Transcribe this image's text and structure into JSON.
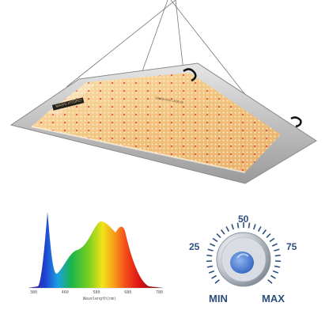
{
  "product": {
    "brand_mark": "MARS HYDRO",
    "led_count_label": "SAMSUNG LM301B"
  },
  "spectrum": {
    "ticks": [
      "380",
      "460",
      "580",
      "680",
      "780"
    ],
    "xlabel": "Wavelength(nm)"
  },
  "dial": {
    "marks": [
      "25",
      "50",
      "75"
    ],
    "min_label": "MIN",
    "max_label": "MAX",
    "level_fraction": 0.2
  },
  "colors": {
    "panel_warm": "#f4c98a",
    "led_red": "#d8423a",
    "dial_blue": "#2c4e7e"
  }
}
